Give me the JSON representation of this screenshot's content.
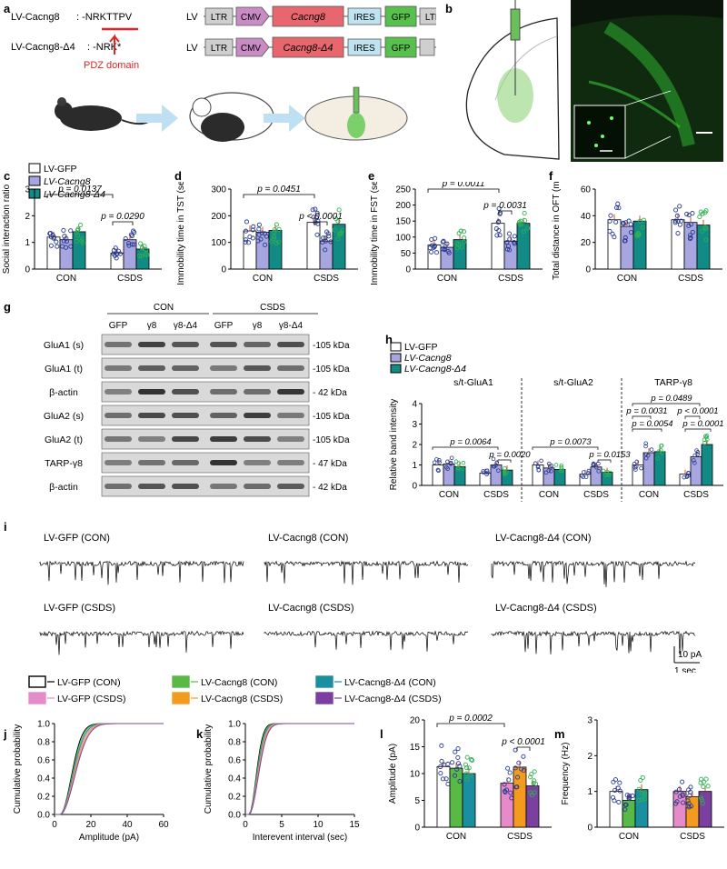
{
  "panels": {
    "a": {
      "label": "a",
      "line1_name": "LV-Cacng8",
      "line1_seq": ": -NRKTTPV",
      "line2_name": "LV-Cacng8-Δ4",
      "line2_seq": ": -NRK*",
      "pdz_label": "PDZ domain",
      "lv": "LV",
      "ltr": "LTR",
      "cmv": "CMV",
      "cacng8": "Cacng8",
      "cacng8_d4": "Cacng8-Δ4",
      "ires": "IRES",
      "gfp": "GFP"
    },
    "b": {
      "label": "b"
    },
    "c": {
      "label": "c"
    },
    "d": {
      "label": "d"
    },
    "e": {
      "label": "e"
    },
    "f": {
      "label": "f"
    },
    "g": {
      "label": "g",
      "group_con": "CON",
      "group_csds": "CSDS",
      "lanes": [
        "GFP",
        "γ8",
        "γ8-Δ4",
        "GFP",
        "γ8",
        "γ8-Δ4"
      ],
      "rows": [
        {
          "name": "GluA1 (s)",
          "kda": "-105 kDa"
        },
        {
          "name": "GluA1 (t)",
          "kda": "-105 kDa"
        },
        {
          "name": "β-actin",
          "kda": "- 42 kDa"
        },
        {
          "name": "GluA2 (s)",
          "kda": "-105 kDa"
        },
        {
          "name": "GluA2 (t)",
          "kda": "-105 kDa"
        },
        {
          "name": "TARP-γ8",
          "kda": "- 47 kDa"
        },
        {
          "name": "β-actin",
          "kda": "- 42 kDa"
        }
      ]
    },
    "h": {
      "label": "h"
    },
    "i": {
      "label": "i",
      "traces": [
        "LV-GFP (CON)",
        "LV-Cacng8 (CON)",
        "LV-Cacng8-Δ4 (CON)",
        "LV-GFP (CSDS)",
        "LV-Cacng8 (CSDS)",
        "LV-Cacng8-Δ4 (CSDS)"
      ],
      "scale_y": "10 pA",
      "scale_x": "1 sec"
    },
    "legend_ijk": [
      {
        "name": "LV-GFP (CON)",
        "color": "#000000",
        "fill": "#ffffff"
      },
      {
        "name": "LV-GFP (CSDS)",
        "color": "#e58bc9",
        "fill": "#e58bc9"
      },
      {
        "name": "LV-Cacng8 (CON)",
        "color": "#58b947",
        "fill": "#58b947"
      },
      {
        "name": "LV-Cacng8 (CSDS)",
        "color": "#f39b1f",
        "fill": "#f39b1f"
      },
      {
        "name": "LV-Cacng8-Δ4 (CON)",
        "color": "#1a8fa0",
        "fill": "#1a8fa0"
      },
      {
        "name": "LV-Cacng8-Δ4 (CSDS)",
        "color": "#7b3fa0",
        "fill": "#7b3fa0"
      }
    ],
    "j": {
      "label": "j"
    },
    "k": {
      "label": "k"
    },
    "l": {
      "label": "l"
    },
    "m": {
      "label": "m"
    }
  },
  "legend_cde": [
    "LV-GFP",
    "LV-Cacng8",
    "LV-Cacng8-Δ4"
  ],
  "colors": {
    "gfp": "#ffffff",
    "cacng8": "#a7a6e0",
    "d4": "#128a86",
    "dot_con": "#2a3b90",
    "dot_green": "#2db04f"
  },
  "chart_data": [
    {
      "id": "c",
      "type": "bar",
      "ylabel": "Social interaction ratio",
      "categories": [
        "CON",
        "CSDS"
      ],
      "ylim": [
        0,
        3
      ],
      "yticks": [
        0,
        1,
        2,
        3
      ],
      "series": [
        {
          "name": "LV-GFP",
          "values": [
            1.2,
            0.6
          ]
        },
        {
          "name": "LV-Cacng8",
          "values": [
            1.1,
            1.1
          ]
        },
        {
          "name": "LV-Cacng8-Δ4",
          "values": [
            1.4,
            0.75
          ]
        }
      ],
      "annotations": [
        "p = 0.0137",
        "p = 0.0290"
      ]
    },
    {
      "id": "d",
      "type": "bar",
      "ylabel": "Immobility time in TST (sec)",
      "categories": [
        "CON",
        "CSDS"
      ],
      "ylim": [
        0,
        300
      ],
      "yticks": [
        0,
        100,
        200,
        300
      ],
      "series": [
        {
          "name": "LV-GFP",
          "values": [
            143,
            175
          ]
        },
        {
          "name": "LV-Cacng8",
          "values": [
            138,
            105
          ]
        },
        {
          "name": "LV-Cacng8-Δ4",
          "values": [
            145,
            168
          ]
        }
      ],
      "annotations": [
        "p = 0.0451",
        "p < 0.0001"
      ]
    },
    {
      "id": "e",
      "type": "bar",
      "ylabel": "Immobility time in FST (sec)",
      "categories": [
        "CON",
        "CSDS"
      ],
      "ylim": [
        0,
        250
      ],
      "yticks": [
        0,
        50,
        100,
        150,
        200,
        250
      ],
      "series": [
        {
          "name": "LV-GFP",
          "values": [
            75,
            143
          ]
        },
        {
          "name": "LV-Cacng8",
          "values": [
            68,
            87
          ]
        },
        {
          "name": "LV-Cacng8-Δ4",
          "values": [
            92,
            143
          ]
        }
      ],
      "annotations": [
        "p = 0.0011",
        "p = 0.0031"
      ]
    },
    {
      "id": "f",
      "type": "bar",
      "ylabel": "Total distance in OFT (m)",
      "categories": [
        "CON",
        "CSDS"
      ],
      "ylim": [
        0,
        60
      ],
      "yticks": [
        0,
        20,
        40,
        60
      ],
      "series": [
        {
          "name": "LV-GFP",
          "values": [
            37,
            37
          ]
        },
        {
          "name": "LV-Cacng8",
          "values": [
            32,
            35
          ]
        },
        {
          "name": "LV-Cacng8-Δ4",
          "values": [
            36,
            33
          ]
        }
      ],
      "annotations": []
    },
    {
      "id": "h",
      "type": "bar",
      "ylabel": "Relative band intensity",
      "legend": [
        "LV-GFP",
        "LV-Cacng8",
        "LV-Cacng8-Δ4"
      ],
      "groups": [
        "s/t-GluA1",
        "s/t-GluA2",
        "TARP-γ8"
      ],
      "categories": [
        "CON",
        "CSDS"
      ],
      "ylim": [
        0,
        4
      ],
      "yticks": [
        0,
        1,
        2,
        3,
        4
      ],
      "values": {
        "s/t-GluA1": {
          "LV-GFP": [
            1.0,
            0.6
          ],
          "LV-Cacng8": [
            1.05,
            1.0
          ],
          "LV-Cacng8-Δ4": [
            0.92,
            0.75
          ]
        },
        "s/t-GluA2": {
          "LV-GFP": [
            1.0,
            0.55
          ],
          "LV-Cacng8": [
            0.85,
            0.9
          ],
          "LV-Cacng8-Δ4": [
            0.78,
            0.65
          ]
        },
        "TARP-γ8": {
          "LV-GFP": [
            1.0,
            0.55
          ],
          "LV-Cacng8": [
            1.6,
            1.4
          ],
          "LV-Cacng8-Δ4": [
            1.65,
            2.0
          ]
        }
      },
      "annotations": [
        "p = 0.0064",
        "p = 0.0020",
        "p = 0.0073",
        "p = 0.0153",
        "p = 0.0489",
        "p = 0.0031",
        "p = 0.0054",
        "p < 0.0001",
        "p = 0.0001"
      ]
    },
    {
      "id": "j",
      "type": "line",
      "xlabel": "Amplitude (pA)",
      "ylabel": "Cumulative probability",
      "xlim": [
        0,
        60
      ],
      "ylim": [
        0,
        1
      ],
      "xticks": [
        0,
        20,
        40,
        60
      ],
      "yticks": [
        0,
        0.2,
        0.4,
        0.6,
        0.8,
        1.0
      ]
    },
    {
      "id": "k",
      "type": "line",
      "xlabel": "Interevent interval (sec)",
      "ylabel": "Cumulative probability",
      "xlim": [
        0,
        15
      ],
      "ylim": [
        0,
        1
      ],
      "xticks": [
        0,
        5,
        10,
        15
      ],
      "yticks": [
        0,
        0.2,
        0.4,
        0.6,
        0.8,
        1.0
      ]
    },
    {
      "id": "l",
      "type": "bar",
      "ylabel": "Amplitude (pA)",
      "categories": [
        "CON",
        "CSDS"
      ],
      "ylim": [
        0,
        20
      ],
      "yticks": [
        0,
        5,
        10,
        15,
        20
      ],
      "series": [
        {
          "values": [
            11.3,
            8.2
          ]
        },
        {
          "values": [
            11.0,
            11.2
          ]
        },
        {
          "values": [
            10.0,
            7.7
          ]
        }
      ],
      "annotations": [
        "p = 0.0002",
        "p < 0.0001"
      ]
    },
    {
      "id": "m",
      "type": "bar",
      "ylabel": "Frequency (Hz)",
      "categories": [
        "CON",
        "CSDS"
      ],
      "ylim": [
        0,
        3
      ],
      "yticks": [
        0,
        1,
        2,
        3
      ],
      "series": [
        {
          "values": [
            1.0,
            1.0
          ]
        },
        {
          "values": [
            0.75,
            0.85
          ]
        },
        {
          "values": [
            1.05,
            1.0
          ]
        }
      ],
      "annotations": []
    }
  ]
}
